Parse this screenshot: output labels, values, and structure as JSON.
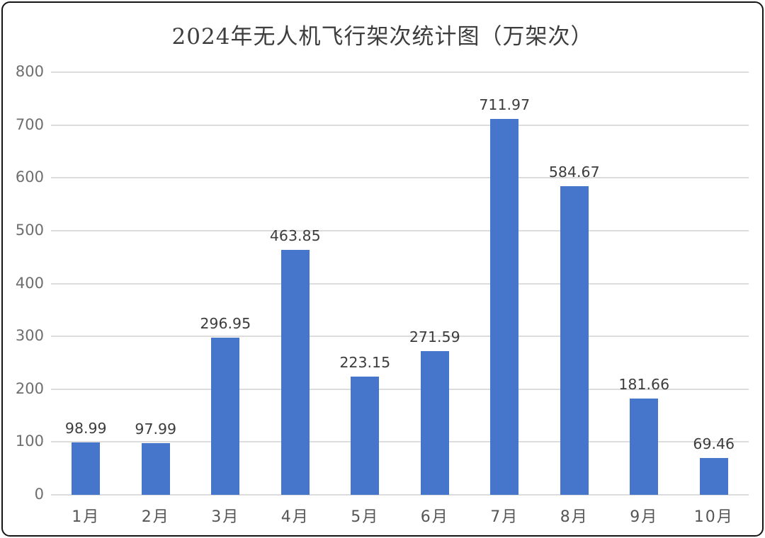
{
  "chart_data": {
    "type": "bar",
    "title": "2024年无人机飞行架次统计图（万架次）",
    "categories": [
      "1月",
      "2月",
      "3月",
      "4月",
      "5月",
      "6月",
      "7月",
      "8月",
      "9月",
      "10月"
    ],
    "values": [
      98.99,
      97.99,
      296.95,
      463.85,
      223.15,
      271.59,
      711.97,
      584.67,
      181.66,
      69.46
    ],
    "data_labels": [
      "98.99",
      "97.99",
      "296.95",
      "463.85",
      "223.15",
      "271.59",
      "711.97",
      "584.67",
      "181.66",
      "69.46"
    ],
    "xlabel": "",
    "ylabel": "",
    "ylim": [
      0,
      800
    ],
    "yticks": [
      0,
      100,
      200,
      300,
      400,
      500,
      600,
      700,
      800
    ],
    "grid": true,
    "legend_position": "none",
    "colors": {
      "bar": "#4676CC",
      "gridline": "#dcdcdc",
      "title_text": "#3d3d3d",
      "y_tick_text": "#6e6e6e",
      "x_tick_text": "#565656",
      "data_label_text": "#3d3d3d",
      "frame_border": "#151515",
      "background": "#ffffff"
    }
  }
}
